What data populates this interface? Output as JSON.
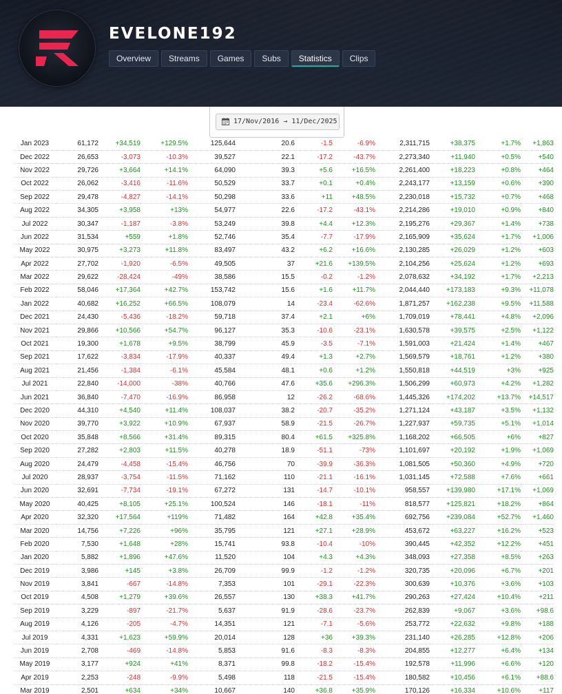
{
  "channel": {
    "name": "EVELONE192",
    "avatar": "twitch-tracker-logo-icon"
  },
  "nav": {
    "tabs": [
      {
        "label": "Overview",
        "active": false
      },
      {
        "label": "Streams",
        "active": false
      },
      {
        "label": "Games",
        "active": false
      },
      {
        "label": "Subs",
        "active": false
      },
      {
        "label": "Statistics",
        "active": true
      },
      {
        "label": "Clips",
        "active": false
      }
    ]
  },
  "date_range": {
    "from": "17/Nov/2016",
    "arrow": "→",
    "to": "11/Dec/2025",
    "icon": "calendar-icon"
  },
  "colors": {
    "positive": "#1f8e1f",
    "negative": "#d23131",
    "accent": "#17b2a8",
    "brand": "#e8264f",
    "header_bg": "#1b2230"
  },
  "table": {
    "rows": [
      [
        "Jan 2023",
        "61,172",
        "+34,519",
        "+129.5%",
        "125,644",
        "20.6",
        "-1.5",
        "-6.9%",
        "2,311,715",
        "+38,375",
        "+1.7%",
        "+1,863"
      ],
      [
        "Dec 2022",
        "26,653",
        "-3,073",
        "-10.3%",
        "39,527",
        "22.1",
        "-17.2",
        "-43.7%",
        "2,273,340",
        "+11,940",
        "+0.5%",
        "+540"
      ],
      [
        "Nov 2022",
        "29,726",
        "+3,664",
        "+14.1%",
        "64,090",
        "39.3",
        "+5.6",
        "+16.5%",
        "2,261,400",
        "+18,223",
        "+0.8%",
        "+464"
      ],
      [
        "Oct 2022",
        "26,062",
        "-3,416",
        "-11.6%",
        "50,529",
        "33.7",
        "+0.1",
        "+0.4%",
        "2,243,177",
        "+13,159",
        "+0.6%",
        "+390"
      ],
      [
        "Sep 2022",
        "29,478",
        "-4,827",
        "-14.1%",
        "50,298",
        "33.6",
        "+11",
        "+48.5%",
        "2,230,018",
        "+15,732",
        "+0.7%",
        "+468"
      ],
      [
        "Aug 2022",
        "34,305",
        "+3,958",
        "+13%",
        "54,977",
        "22.6",
        "-17.2",
        "-43.1%",
        "2,214,286",
        "+19,010",
        "+0.9%",
        "+840"
      ],
      [
        "Jul 2022",
        "30,347",
        "-1,187",
        "-3.8%",
        "53,249",
        "39.8",
        "+4.4",
        "+12.3%",
        "2,195,276",
        "+29,367",
        "+1.4%",
        "+738"
      ],
      [
        "Jun 2022",
        "31,534",
        "+559",
        "+1.8%",
        "52,746",
        "35.4",
        "-7.7",
        "-17.9%",
        "2,165,909",
        "+35,624",
        "+1.7%",
        "+1,006"
      ],
      [
        "May 2022",
        "30,975",
        "+3,273",
        "+11.8%",
        "83,497",
        "43.2",
        "+6.2",
        "+16.6%",
        "2,130,285",
        "+26,029",
        "+1.2%",
        "+603"
      ],
      [
        "Apr 2022",
        "27,702",
        "-1,920",
        "-6.5%",
        "49,505",
        "37",
        "+21.6",
        "+139.5%",
        "2,104,256",
        "+25,624",
        "+1.2%",
        "+693"
      ],
      [
        "Mar 2022",
        "29,622",
        "-28,424",
        "-49%",
        "38,586",
        "15.5",
        "-0.2",
        "-1.2%",
        "2,078,632",
        "+34,192",
        "+1.7%",
        "+2,213"
      ],
      [
        "Feb 2022",
        "58,046",
        "+17,364",
        "+42.7%",
        "153,742",
        "15.6",
        "+1.6",
        "+11.7%",
        "2,044,440",
        "+173,183",
        "+9.3%",
        "+11,078"
      ],
      [
        "Jan 2022",
        "40,682",
        "+16,252",
        "+66.5%",
        "108,079",
        "14",
        "-23.4",
        "-62.6%",
        "1,871,257",
        "+162,238",
        "+9.5%",
        "+11,588"
      ],
      [
        "Dec 2021",
        "24,430",
        "-5,436",
        "-18.2%",
        "59,718",
        "37.4",
        "+2.1",
        "+6%",
        "1,709,019",
        "+78,441",
        "+4.8%",
        "+2,096"
      ],
      [
        "Nov 2021",
        "29,866",
        "+10,566",
        "+54.7%",
        "96,127",
        "35.3",
        "-10.6",
        "-23.1%",
        "1,630,578",
        "+39,575",
        "+2.5%",
        "+1,122"
      ],
      [
        "Oct 2021",
        "19,300",
        "+1,678",
        "+9.5%",
        "38,799",
        "45.9",
        "-3.5",
        "-7.1%",
        "1,591,003",
        "+21,424",
        "+1.4%",
        "+467"
      ],
      [
        "Sep 2021",
        "17,622",
        "-3,834",
        "-17.9%",
        "40,337",
        "49.4",
        "+1.3",
        "+2.7%",
        "1,569,579",
        "+18,761",
        "+1.2%",
        "+380"
      ],
      [
        "Aug 2021",
        "21,456",
        "-1,384",
        "-6.1%",
        "45,584",
        "48.1",
        "+0.6",
        "+1.2%",
        "1,550,818",
        "+44,519",
        "+3%",
        "+925"
      ],
      [
        "Jul 2021",
        "22,840",
        "-14,000",
        "-38%",
        "40,766",
        "47.6",
        "+35.6",
        "+296.3%",
        "1,506,299",
        "+60,973",
        "+4.2%",
        "+1,282"
      ],
      [
        "Jun 2021",
        "36,840",
        "-7,470",
        "-16.9%",
        "86,958",
        "12",
        "-26.2",
        "-68.6%",
        "1,445,326",
        "+174,202",
        "+13.7%",
        "+14,517"
      ],
      [
        "Dec 2020",
        "44,310",
        "+4,540",
        "+11.4%",
        "108,037",
        "38.2",
        "-20.7",
        "-35.2%",
        "1,271,124",
        "+43,187",
        "+3.5%",
        "+1,132"
      ],
      [
        "Nov 2020",
        "39,770",
        "+3,922",
        "+10.9%",
        "67,937",
        "58.9",
        "-21.5",
        "-26.7%",
        "1,227,937",
        "+59,735",
        "+5.1%",
        "+1,014"
      ],
      [
        "Oct 2020",
        "35,848",
        "+8,566",
        "+31.4%",
        "89,315",
        "80.4",
        "+61.5",
        "+325.8%",
        "1,168,202",
        "+66,505",
        "+6%",
        "+827"
      ],
      [
        "Sep 2020",
        "27,282",
        "+2,803",
        "+11.5%",
        "40,278",
        "18.9",
        "-51.1",
        "-73%",
        "1,101,697",
        "+20,192",
        "+1.9%",
        "+1,069"
      ],
      [
        "Aug 2020",
        "24,479",
        "-4,458",
        "-15.4%",
        "46,756",
        "70",
        "-39.9",
        "-36.3%",
        "1,081,505",
        "+50,360",
        "+4.9%",
        "+720"
      ],
      [
        "Jul 2020",
        "28,937",
        "-3,754",
        "-11.5%",
        "71,162",
        "110",
        "-21.1",
        "-16.1%",
        "1,031,145",
        "+72,588",
        "+7.6%",
        "+661"
      ],
      [
        "Jun 2020",
        "32,691",
        "-7,734",
        "-19.1%",
        "67,272",
        "131",
        "-14.7",
        "-10.1%",
        "958,557",
        "+139,980",
        "+17.1%",
        "+1,069"
      ],
      [
        "May 2020",
        "40,425",
        "+8,105",
        "+25.1%",
        "100,524",
        "146",
        "-18.1",
        "-11%",
        "818,577",
        "+125,821",
        "+18.2%",
        "+864"
      ],
      [
        "Apr 2020",
        "32,320",
        "+17,564",
        "+119%",
        "71,482",
        "164",
        "+42.8",
        "+35.4%",
        "692,756",
        "+239,084",
        "+52.7%",
        "+1,460"
      ],
      [
        "Mar 2020",
        "14,756",
        "+7,226",
        "+96%",
        "35,795",
        "121",
        "+27.1",
        "+28.9%",
        "453,672",
        "+63,227",
        "+16.2%",
        "+523"
      ],
      [
        "Feb 2020",
        "7,530",
        "+1,648",
        "+28%",
        "15,741",
        "93.8",
        "-10.4",
        "-10%",
        "390,445",
        "+42,352",
        "+12.2%",
        "+451"
      ],
      [
        "Jan 2020",
        "5,882",
        "+1,896",
        "+47.6%",
        "11,520",
        "104",
        "+4.3",
        "+4.3%",
        "348,093",
        "+27,358",
        "+8.5%",
        "+263"
      ],
      [
        "Dec 2019",
        "3,986",
        "+145",
        "+3.8%",
        "26,709",
        "99.9",
        "-1.2",
        "-1.2%",
        "320,735",
        "+20,096",
        "+6.7%",
        "+201"
      ],
      [
        "Nov 2019",
        "3,841",
        "-667",
        "-14.8%",
        "7,353",
        "101",
        "-29.1",
        "-22.3%",
        "300,639",
        "+10,376",
        "+3.6%",
        "+103"
      ],
      [
        "Oct 2019",
        "4,508",
        "+1,279",
        "+39.6%",
        "26,557",
        "130",
        "+38.3",
        "+41.7%",
        "290,263",
        "+27,424",
        "+10.4%",
        "+211"
      ],
      [
        "Sep 2019",
        "3,229",
        "-897",
        "-21.7%",
        "5,637",
        "91.9",
        "-28.6",
        "-23.7%",
        "262,839",
        "+9,067",
        "+3.6%",
        "+98.6"
      ],
      [
        "Aug 2019",
        "4,126",
        "-205",
        "-4.7%",
        "14,351",
        "121",
        "-7.1",
        "-5.6%",
        "253,772",
        "+22,632",
        "+9.8%",
        "+188"
      ],
      [
        "Jul 2019",
        "4,331",
        "+1,623",
        "+59.9%",
        "20,014",
        "128",
        "+36",
        "+39.3%",
        "231,140",
        "+26,285",
        "+12.8%",
        "+206"
      ],
      [
        "Jun 2019",
        "2,708",
        "-469",
        "-14.8%",
        "5,853",
        "91.6",
        "-8.3",
        "-8.3%",
        "204,855",
        "+12,277",
        "+6.4%",
        "+134"
      ],
      [
        "May 2019",
        "3,177",
        "+924",
        "+41%",
        "8,371",
        "99.8",
        "-18.2",
        "-15.4%",
        "192,578",
        "+11,996",
        "+6.6%",
        "+120"
      ],
      [
        "Apr 2019",
        "2,253",
        "-248",
        "-9.9%",
        "5,498",
        "118",
        "-21.5",
        "-15.4%",
        "180,582",
        "+10,456",
        "+6.1%",
        "+88.6"
      ],
      [
        "Mar 2019",
        "2,501",
        "+634",
        "+34%",
        "10,667",
        "140",
        "+36.8",
        "+35.9%",
        "170,126",
        "+16,334",
        "+10.6%",
        "+117"
      ]
    ]
  }
}
